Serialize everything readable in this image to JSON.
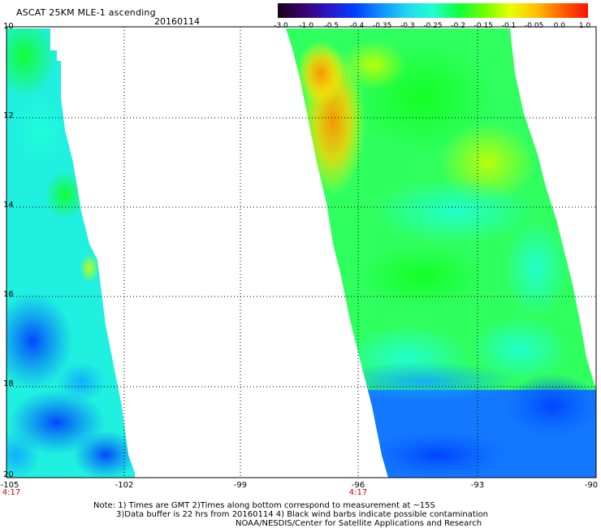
{
  "header": {
    "title": "ASCAT 25KM MLE-1 ascending",
    "date": "20160114"
  },
  "colorbar": {
    "labels": [
      "-3.0",
      "-1.0",
      "-0.5",
      "-0.4",
      "-0.35",
      "-0.3",
      "-0.25",
      "-0.2",
      "-0.15",
      "-0.1",
      "-0.05",
      "0.0",
      "1.0"
    ],
    "colors": [
      "#1a0018",
      "#3a0070",
      "#2a18c8",
      "#0040ff",
      "#1090ff",
      "#20d8f0",
      "#20ffd0",
      "#10ff40",
      "#70ff00",
      "#e8ff00",
      "#ffc000",
      "#ff6000",
      "#ff1000"
    ]
  },
  "map": {
    "latitude_labels": [
      "10",
      "12",
      "14",
      "16",
      "18",
      "20"
    ],
    "longitude_labels": [
      "-105",
      "-102",
      "-99",
      "-96",
      "-93",
      "-90"
    ],
    "time_labels": [
      {
        "text": "4:17",
        "under_longitude": "-105"
      },
      {
        "text": "4:17",
        "under_longitude": "-96"
      }
    ],
    "grid": "dotted"
  },
  "footer": {
    "note_line1": "Note: 1) Times are GMT 2)Times along bottom correspond to measurement at ~15S",
    "note_line2": "3)Data buffer is 22 hrs from 20160114 4) Black wind barbs indicate possible contamination",
    "credit": "NOAA/NESDIS/Center for Satellite Applications and Research"
  }
}
